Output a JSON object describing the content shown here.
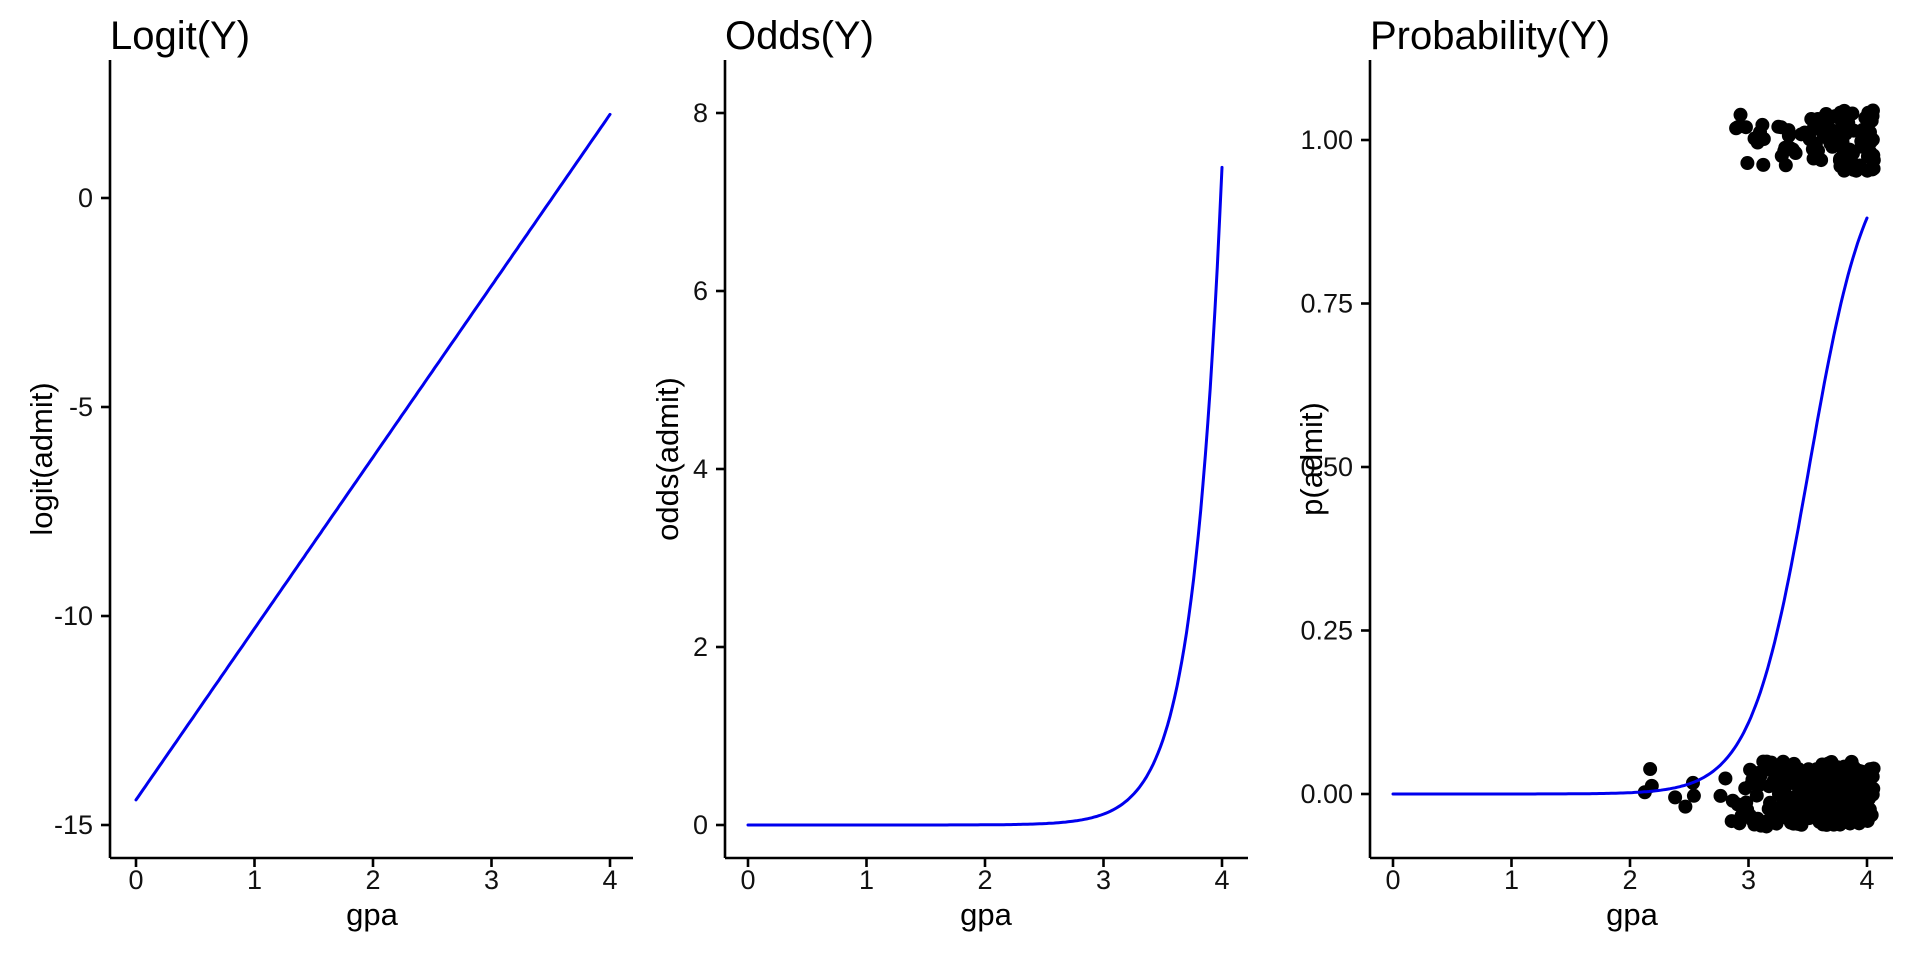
{
  "figure": {
    "background": "#FFFFFF",
    "curve_color": "#0000EE",
    "axis_color": "#000000",
    "point_color": "#000000"
  },
  "model": {
    "intercept": -14.4,
    "slope": 4.1
  },
  "chart_data": [
    {
      "id": "logit",
      "type": "line",
      "title": "Logit(Y)",
      "xlabel": "gpa",
      "ylabel": "logit(admit)",
      "x_ticks": [
        "0",
        "1",
        "2",
        "3",
        "4"
      ],
      "x_tick_values": [
        0,
        1,
        2,
        3,
        4
      ],
      "y_ticks": [
        "0",
        "-5",
        "-10",
        "-15"
      ],
      "y_tick_values": [
        0,
        -5,
        -10,
        -15
      ],
      "xlim": [
        -0.22,
        4.2
      ],
      "ylim": [
        -15.8,
        3.3
      ],
      "grid": false,
      "legend": "none",
      "series": [
        {
          "name": "logit line",
          "kind": "linear",
          "color": "#0000EE",
          "x_range": [
            0,
            4
          ],
          "endpoints": [
            [
              0,
              -14.4
            ],
            [
              4,
              2.0
            ]
          ]
        }
      ]
    },
    {
      "id": "odds",
      "type": "line",
      "title": "Odds(Y)",
      "xlabel": "gpa",
      "ylabel": "odds(admit)",
      "x_ticks": [
        "0",
        "1",
        "2",
        "3",
        "4"
      ],
      "x_tick_values": [
        0,
        1,
        2,
        3,
        4
      ],
      "y_ticks": [
        "0",
        "2",
        "4",
        "6",
        "8"
      ],
      "y_tick_values": [
        0,
        2,
        4,
        6,
        8
      ],
      "xlim": [
        -0.22,
        4.2
      ],
      "ylim": [
        -0.37,
        8.6
      ],
      "grid": false,
      "legend": "none",
      "series": [
        {
          "name": "odds curve",
          "kind": "exponential",
          "color": "#0000EE",
          "formula": "exp(intercept + slope*gpa)",
          "x_range": [
            0,
            4
          ],
          "endpoints": [
            [
              0,
              0.0
            ],
            [
              4,
              7.39
            ]
          ]
        }
      ]
    },
    {
      "id": "probability",
      "type": "line+scatter",
      "title": "Probability(Y)",
      "xlabel": "gpa",
      "ylabel": "p(admit)",
      "x_ticks": [
        "0",
        "1",
        "2",
        "3",
        "4"
      ],
      "x_tick_values": [
        0,
        1,
        2,
        3,
        4
      ],
      "y_ticks": [
        "0.00",
        "0.25",
        "0.50",
        "0.75",
        "1.00"
      ],
      "y_tick_values": [
        0,
        0.25,
        0.5,
        0.75,
        1
      ],
      "xlim": [
        -0.22,
        4.2
      ],
      "ylim": [
        -0.1,
        1.12
      ],
      "grid": false,
      "legend": "none",
      "series": [
        {
          "name": "probability curve",
          "kind": "logistic",
          "color": "#0000EE",
          "formula": "1/(1+exp(-(intercept + slope*gpa)))",
          "x_range": [
            0,
            4
          ],
          "endpoints": [
            [
              0,
              0.0
            ],
            [
              4,
              0.88
            ]
          ]
        }
      ],
      "scatter": {
        "point_radius": 7,
        "seed": 42,
        "admitted": {
          "value": 1,
          "n": 112,
          "gpa_min": 2.82,
          "gpa_max": 4.06,
          "right_skew": 0.5,
          "y_center": 1.0,
          "y_jitter": 0.047
        },
        "rejected": {
          "value": 0,
          "n": 228,
          "gpa_min": 2.7,
          "gpa_max": 4.06,
          "right_skew": 0.55,
          "y_center": 0.0,
          "y_jitter": 0.05,
          "outliers_n": 7,
          "outliers_gpa_min": 2.02,
          "outliers_gpa_max": 2.62
        }
      }
    }
  ]
}
